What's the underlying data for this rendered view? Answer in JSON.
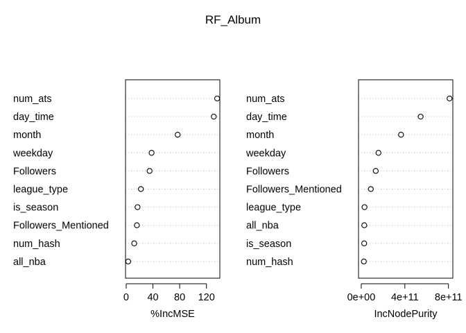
{
  "title": "RF_Album",
  "chart_data": [
    {
      "type": "scatter",
      "style": "dotchart",
      "xlabel": "%IncMSE",
      "xlim": [
        -1,
        140
      ],
      "ticks": [
        0,
        40,
        80,
        120
      ],
      "tick_labels": [
        "0",
        "40",
        "80",
        "120"
      ],
      "grid": "dotted horizontal",
      "points": [
        {
          "label": "num_ats",
          "value": 136
        },
        {
          "label": "day_time",
          "value": 131
        },
        {
          "label": "month",
          "value": 77
        },
        {
          "label": "weekday",
          "value": 38
        },
        {
          "label": "Followers",
          "value": 35
        },
        {
          "label": "league_type",
          "value": 22
        },
        {
          "label": "is_season",
          "value": 17
        },
        {
          "label": "Followers_Mentioned",
          "value": 16
        },
        {
          "label": "num_hash",
          "value": 12
        },
        {
          "label": "all_nba",
          "value": 3
        }
      ]
    },
    {
      "type": "scatter",
      "style": "dotchart",
      "xlabel": "IncNodePurity",
      "xlim": [
        -25000000000.0,
        840000000000.0
      ],
      "ticks": [
        0,
        400000000000,
        800000000000
      ],
      "tick_labels": [
        "0e+00",
        "4e+11",
        "8e+11"
      ],
      "grid": "dotted horizontal",
      "points": [
        {
          "label": "num_ats",
          "value": 810000000000
        },
        {
          "label": "day_time",
          "value": 545000000000
        },
        {
          "label": "month",
          "value": 365000000000
        },
        {
          "label": "weekday",
          "value": 158000000000
        },
        {
          "label": "Followers",
          "value": 133000000000
        },
        {
          "label": "Followers_Mentioned",
          "value": 88000000000
        },
        {
          "label": "league_type",
          "value": 30000000000
        },
        {
          "label": "all_nba",
          "value": 28000000000
        },
        {
          "label": "is_season",
          "value": 27000000000
        },
        {
          "label": "num_hash",
          "value": 24000000000
        }
      ]
    }
  ]
}
